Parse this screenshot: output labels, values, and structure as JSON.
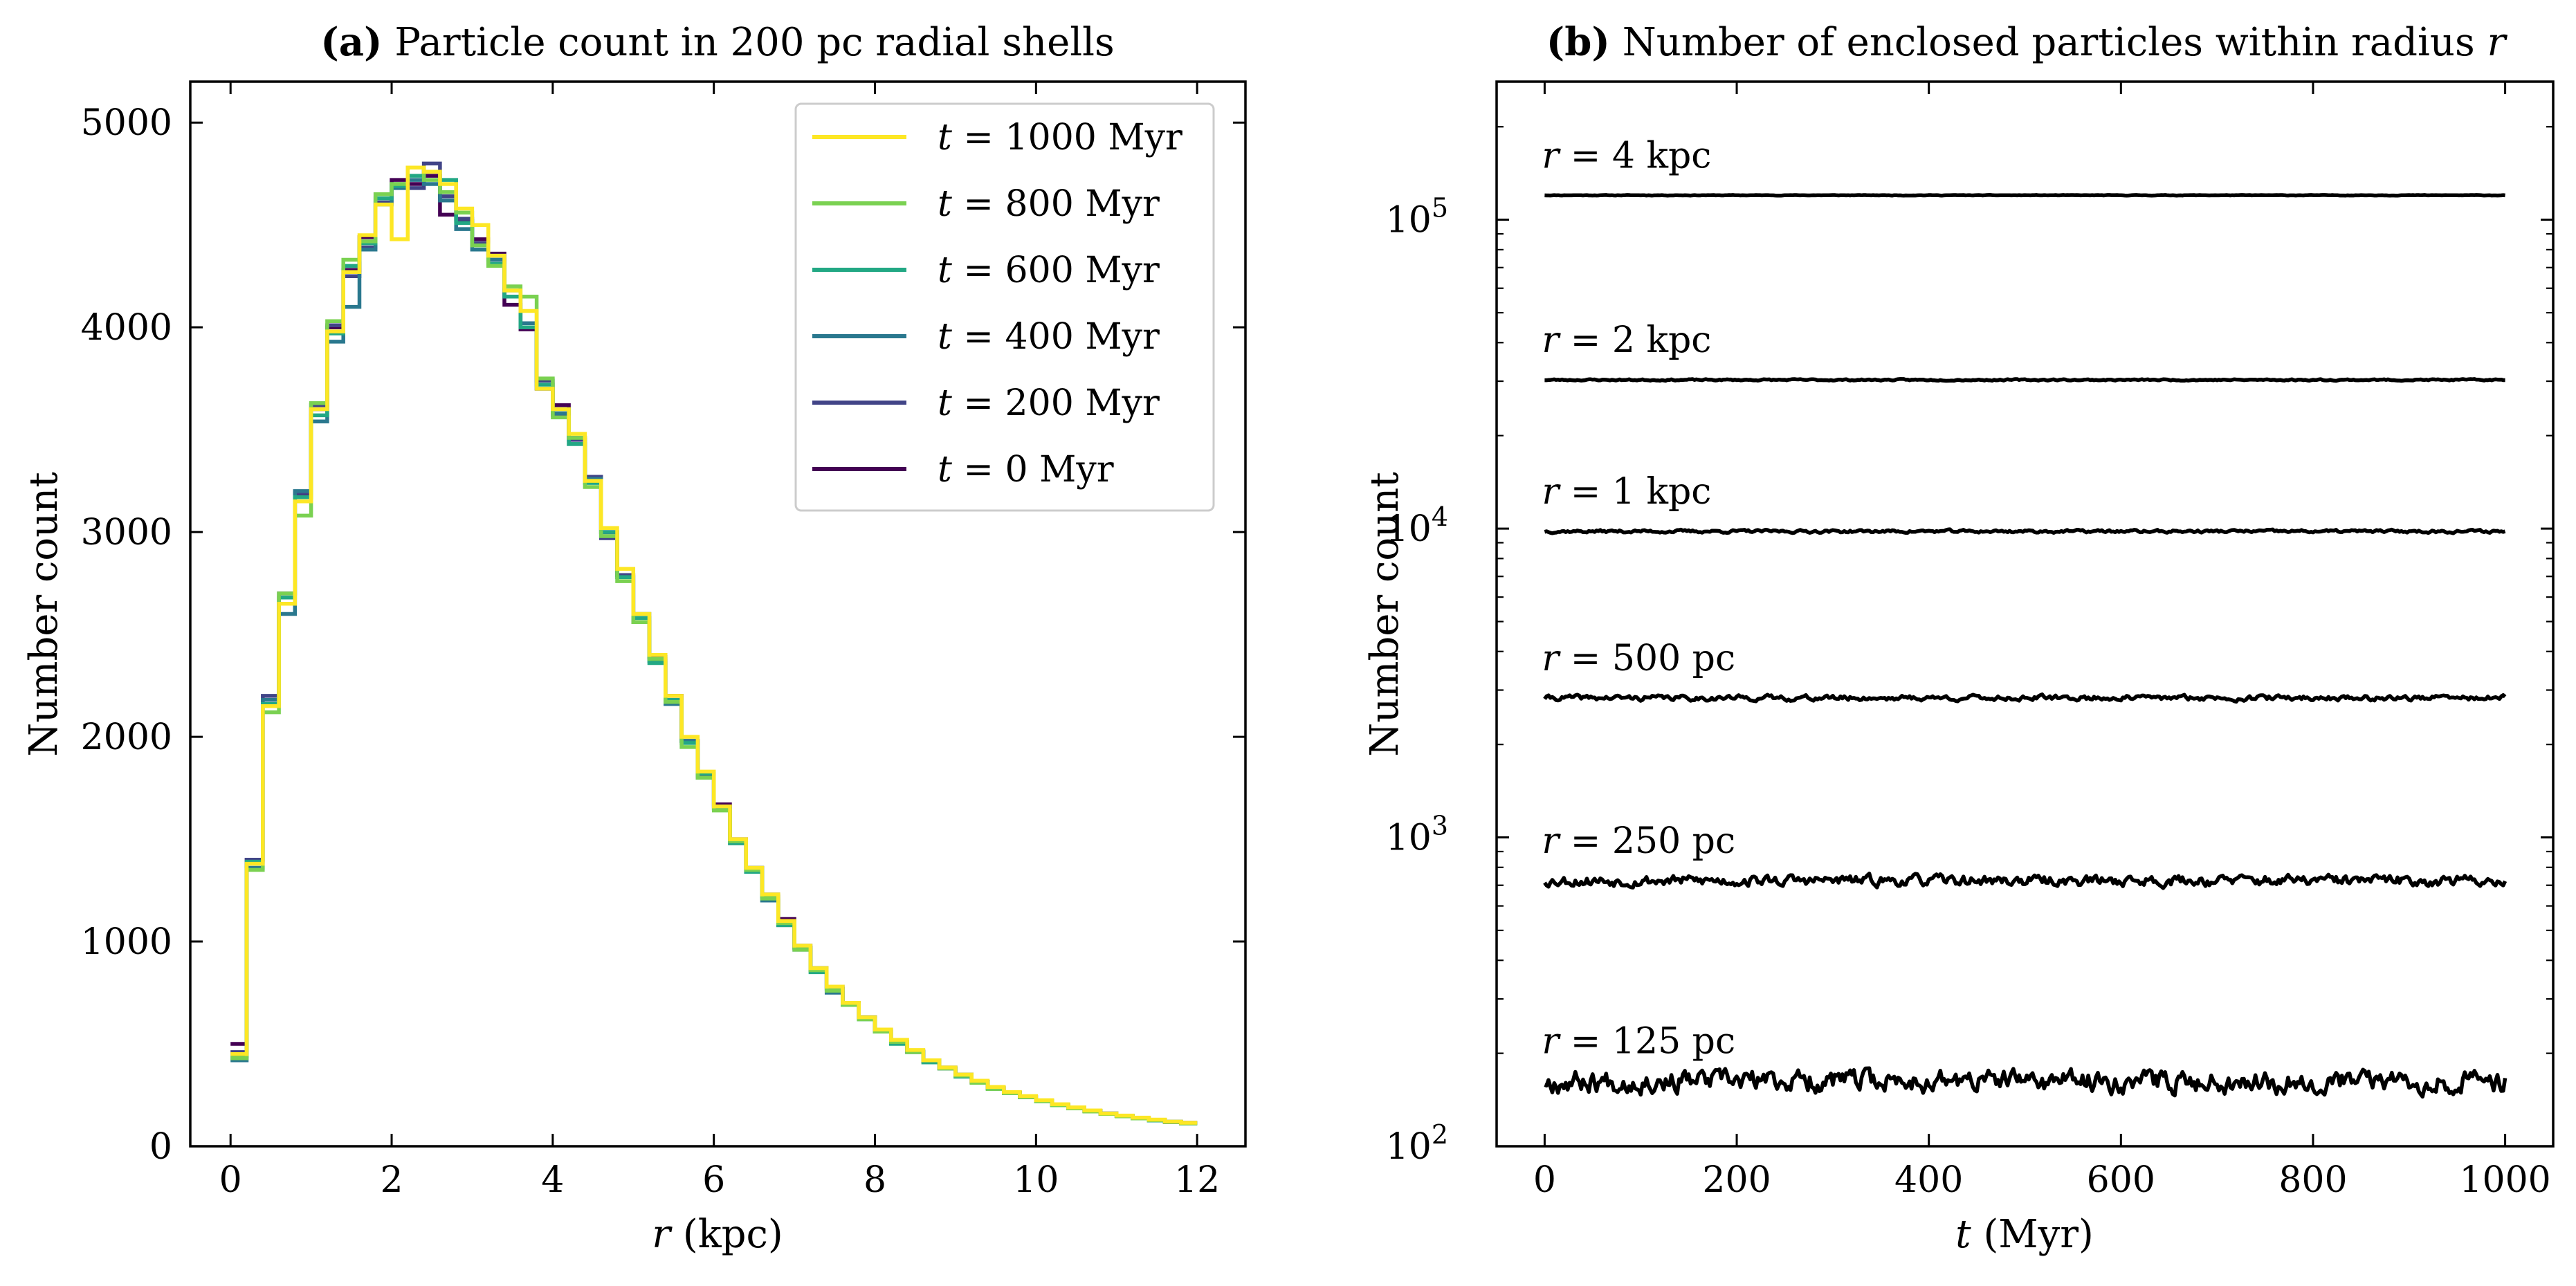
{
  "chart_data": [
    {
      "type": "line",
      "panel_label": "(a)",
      "title": "Particle count in 200 pc radial shells",
      "xlabel_var": "r",
      "xlabel_unit": "(kpc)",
      "ylabel": "Number count",
      "xlim": [
        -0.5,
        12.6
      ],
      "ylim": [
        0,
        5200
      ],
      "xticks": [
        0,
        2,
        4,
        6,
        8,
        10,
        12
      ],
      "yticks": [
        0,
        1000,
        2000,
        3000,
        4000,
        5000
      ],
      "legend_position": "top-right",
      "step": true,
      "bin_width_kpc": 0.2,
      "bin_start_kpc": 0,
      "series": [
        {
          "name_var": "t",
          "name_rest": " = 1000 Myr",
          "color": "#fde725",
          "values": [
            450,
            1380,
            2150,
            2650,
            3150,
            3600,
            3980,
            4270,
            4450,
            4600,
            4430,
            4780,
            4760,
            4700,
            4580,
            4500,
            4350,
            4180,
            4080,
            3700,
            3600,
            3480,
            3250,
            3020,
            2820,
            2600,
            2400,
            2200,
            2000,
            1830,
            1660,
            1500,
            1360,
            1230,
            1100,
            980,
            870,
            780,
            700,
            630,
            570,
            520,
            470,
            420,
            385,
            350,
            320,
            290,
            265,
            245,
            225,
            205,
            190,
            175,
            160,
            150,
            140,
            130,
            120,
            115
          ]
        },
        {
          "name_var": "t",
          "name_rest": " = 800 Myr",
          "color": "#7ad151",
          "values": [
            430,
            1350,
            2120,
            2700,
            3080,
            3630,
            4030,
            4330,
            4420,
            4650,
            4700,
            4780,
            4720,
            4660,
            4560,
            4400,
            4300,
            4200,
            4150,
            3750,
            3560,
            3460,
            3220,
            2980,
            2760,
            2560,
            2380,
            2170,
            1950,
            1800,
            1640,
            1490,
            1350,
            1210,
            1090,
            960,
            860,
            760,
            690,
            620,
            560,
            510,
            460,
            420,
            380,
            345,
            310,
            280,
            260,
            240,
            220,
            200,
            185,
            170,
            158,
            146,
            136,
            128,
            120,
            112
          ]
        },
        {
          "name_var": "t",
          "name_rest": " = 600 Myr",
          "color": "#22a884",
          "values": [
            440,
            1390,
            2160,
            2680,
            3170,
            3570,
            3970,
            4300,
            4410,
            4630,
            4690,
            4740,
            4760,
            4720,
            4510,
            4400,
            4310,
            4150,
            4000,
            3720,
            3600,
            3430,
            3240,
            3000,
            2780,
            2580,
            2360,
            2180,
            1970,
            1820,
            1650,
            1480,
            1340,
            1220,
            1080,
            970,
            850,
            770,
            690,
            620,
            560,
            500,
            460,
            410,
            380,
            340,
            310,
            280,
            260,
            240,
            220,
            200,
            185,
            172,
            158,
            148,
            136,
            126,
            118,
            112
          ]
        },
        {
          "name_var": "t",
          "name_rest": " = 400 Myr",
          "color": "#2a788e",
          "values": [
            420,
            1360,
            2180,
            2600,
            3200,
            3540,
            3930,
            4100,
            4380,
            4600,
            4680,
            4720,
            4700,
            4620,
            4480,
            4380,
            4330,
            4180,
            4020,
            3700,
            3580,
            3430,
            3260,
            2980,
            2780,
            2600,
            2370,
            2160,
            1980,
            1800,
            1660,
            1490,
            1360,
            1200,
            1090,
            960,
            870,
            750,
            690,
            630,
            560,
            510,
            460,
            420,
            380,
            350,
            315,
            285,
            260,
            240,
            222,
            202,
            188,
            172,
            160,
            148,
            136,
            128,
            118,
            112
          ]
        },
        {
          "name_var": "t",
          "name_rest": " = 200 Myr",
          "color": "#414487",
          "values": [
            460,
            1400,
            2200,
            2650,
            3190,
            3620,
            4010,
            4250,
            4390,
            4610,
            4700,
            4680,
            4800,
            4640,
            4530,
            4410,
            4350,
            4150,
            4000,
            3740,
            3570,
            3450,
            3270,
            2970,
            2790,
            2560,
            2390,
            2180,
            1980,
            1810,
            1650,
            1480,
            1350,
            1230,
            1080,
            980,
            860,
            780,
            690,
            630,
            565,
            505,
            460,
            415,
            385,
            345,
            315,
            285,
            262,
            242,
            222,
            203,
            188,
            172,
            160,
            148,
            137,
            128,
            118,
            112
          ]
        },
        {
          "name_var": "t",
          "name_rest": " = 0 Myr",
          "color": "#440154",
          "values": [
            500,
            1400,
            2150,
            2700,
            3180,
            3600,
            4000,
            4280,
            4440,
            4650,
            4720,
            4700,
            4740,
            4550,
            4520,
            4430,
            4360,
            4110,
            3990,
            3700,
            3620,
            3460,
            3250,
            3000,
            2790,
            2560,
            2390,
            2200,
            1980,
            1820,
            1670,
            1500,
            1360,
            1220,
            1110,
            970,
            870,
            770,
            700,
            630,
            570,
            510,
            465,
            415,
            380,
            350,
            315,
            285,
            262,
            240,
            222,
            202,
            188,
            172,
            160,
            148,
            137,
            128,
            120,
            115
          ]
        }
      ]
    },
    {
      "type": "line",
      "panel_label": "(b)",
      "title": "Number of enclosed particles within radius ",
      "title_var": "r",
      "xlabel_var": "t",
      "xlabel_unit": "(Myr)",
      "ylabel": "Number count",
      "yscale": "log",
      "xlim": [
        -50,
        1050
      ],
      "ylim": [
        100,
        280000
      ],
      "xticks": [
        0,
        200,
        400,
        600,
        800,
        1000
      ],
      "yticks": [
        {
          "value": 100,
          "base": "10",
          "exp": "2"
        },
        {
          "value": 1000,
          "base": "10",
          "exp": "3"
        },
        {
          "value": 10000,
          "base": "10",
          "exp": "4"
        },
        {
          "value": 100000,
          "base": "10",
          "exp": "5"
        }
      ],
      "series": [
        {
          "label_var": "r",
          "label_rest": " = 4 kpc",
          "mean": 120000,
          "fluct": 0.002,
          "seed": 11
        },
        {
          "label_var": "r",
          "label_rest": " = 2 kpc",
          "mean": 30300,
          "fluct": 0.006,
          "seed": 23
        },
        {
          "label_var": "r",
          "label_rest": " = 1 kpc",
          "mean": 9800,
          "fluct": 0.012,
          "seed": 37
        },
        {
          "label_var": "r",
          "label_rest": " = 500 pc",
          "mean": 2830,
          "fluct": 0.022,
          "seed": 41
        },
        {
          "label_var": "r",
          "label_rest": " = 250 pc",
          "mean": 725,
          "fluct": 0.045,
          "seed": 53
        },
        {
          "label_var": "r",
          "label_rest": " = 125 pc",
          "mean": 163,
          "fluct": 0.09,
          "seed": 67
        }
      ]
    }
  ]
}
